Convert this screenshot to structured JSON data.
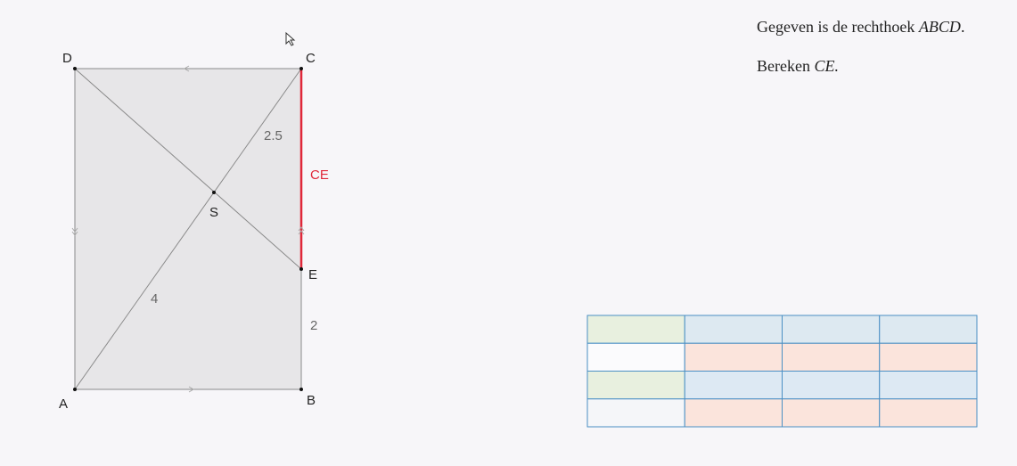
{
  "figure": {
    "points": {
      "A": "A",
      "B": "B",
      "C": "C",
      "D": "D",
      "E": "E",
      "S": "S"
    },
    "lengths": {
      "SC": "2.5",
      "AS": "4",
      "EB": "2",
      "CE": "CE"
    }
  },
  "text": {
    "line1": [
      "Gegeven is de rechthoek ",
      "ABCD",
      "."
    ],
    "line2": [
      "Bereken ",
      "CE."
    ]
  }
}
